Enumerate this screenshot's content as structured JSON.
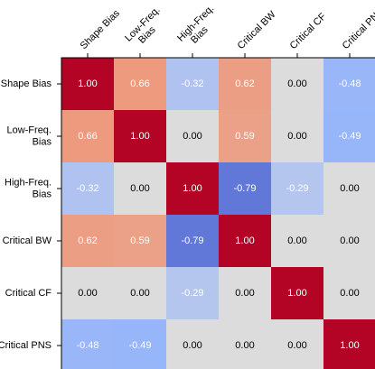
{
  "chart_data": {
    "type": "heatmap",
    "title": "",
    "labels": [
      [
        "Shape Bias"
      ],
      [
        "Low-Freq.",
        "Bias"
      ],
      [
        "High-Freq.",
        "Bias"
      ],
      [
        "Critical BW"
      ],
      [
        "Critical CF"
      ],
      [
        "Critical PNS"
      ]
    ],
    "values": [
      [
        1.0,
        0.66,
        -0.32,
        0.62,
        0.0,
        -0.48
      ],
      [
        0.66,
        1.0,
        0.0,
        0.59,
        0.0,
        -0.49
      ],
      [
        -0.32,
        0.0,
        1.0,
        -0.79,
        -0.29,
        0.0
      ],
      [
        0.62,
        0.59,
        -0.79,
        1.0,
        0.0,
        0.0
      ],
      [
        0.0,
        0.0,
        -0.29,
        0.0,
        1.0,
        0.0
      ],
      [
        -0.48,
        -0.49,
        0.0,
        0.0,
        0.0,
        1.0
      ]
    ],
    "value_format": "2 decimals",
    "colormap": "coolwarm",
    "vlim": [
      -1,
      1
    ],
    "zero_cell_color": "#dcdcdc",
    "grid": false,
    "legend": "none"
  }
}
